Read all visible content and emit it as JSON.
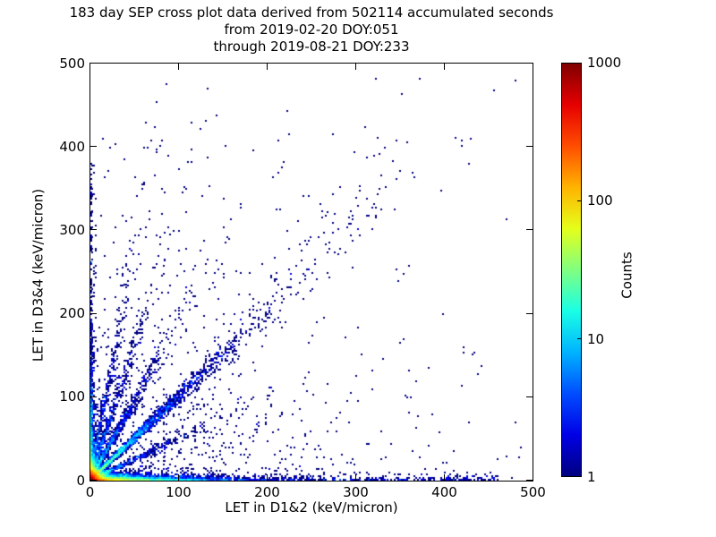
{
  "figure": {
    "background": "#ffffff"
  },
  "chart_data": {
    "type": "scatter",
    "subtype": "2d-histogram-cross-plot",
    "title_lines": [
      "183 day SEP cross plot data derived from 502114 accumulated seconds",
      "from 2019-02-20 DOY:051",
      "through 2019-08-21 DOY:233"
    ],
    "xlabel": "LET in D1&2 (keV/micron)",
    "ylabel": "LET in D3&4 (keV/micron)",
    "xlim": [
      0,
      500
    ],
    "ylim": [
      0,
      500
    ],
    "xticks": [
      0,
      100,
      200,
      300,
      400,
      500
    ],
    "yticks": [
      0,
      100,
      200,
      300,
      400,
      500
    ],
    "grid": false,
    "single_count_color": "#000080",
    "colorbar": {
      "label": "Counts",
      "scale": "log",
      "vmin": 1,
      "vmax": 1000,
      "ticks": [
        1,
        10,
        100,
        1000
      ],
      "colormap": "jet",
      "position": "right"
    },
    "bin_size": 2,
    "density_model": {
      "seed": 20190220,
      "components": [
        {
          "name": "origin-core",
          "kind": "exp2d",
          "n": 9000,
          "xscale": 4.5,
          "yscale": 4.5
        },
        {
          "name": "bottom-band",
          "kind": "exp2d",
          "n": 4800,
          "xscale": 38,
          "yscale": 2.2
        },
        {
          "name": "bottom-band-tail",
          "kind": "uniform-exp",
          "n": 500,
          "xmax": 462,
          "yscale": 2.2
        },
        {
          "name": "left-band",
          "kind": "exp2d",
          "n": 2000,
          "xscale": 2.0,
          "yscale": 40
        },
        {
          "name": "left-band-tail",
          "kind": "exp-uniform",
          "n": 150,
          "xscale": 2.0,
          "ymax": 380
        },
        {
          "name": "ray-diagonal",
          "kind": "ray",
          "n": 2400,
          "slope": 1.0,
          "rscale": 55,
          "jitter": 0.055
        },
        {
          "name": "ray-diagonal-tail",
          "kind": "ray-uniform",
          "n": 80,
          "slope": 1.12,
          "rmin": 120,
          "rmax": 330,
          "jitter": 0.1
        },
        {
          "name": "ray-2",
          "kind": "ray",
          "n": 900,
          "slope": 1.9,
          "rscale": 30,
          "jitter": 0.07
        },
        {
          "name": "ray-3",
          "kind": "ray",
          "n": 600,
          "slope": 3.2,
          "rscale": 22,
          "jitter": 0.08
        },
        {
          "name": "ray-4",
          "kind": "ray",
          "n": 450,
          "slope": 5.5,
          "rscale": 16,
          "jitter": 0.09
        },
        {
          "name": "ray-sub-diagonal",
          "kind": "ray",
          "n": 550,
          "slope": 0.5,
          "rscale": 42,
          "jitter": 0.07
        },
        {
          "name": "diffuse",
          "kind": "exp2d",
          "n": 800,
          "xscale": 110,
          "yscale": 85
        },
        {
          "name": "diffuse-wide",
          "kind": "uniform2d",
          "n": 90,
          "xmax": 450,
          "ymax": 430
        }
      ]
    },
    "outliers": [
      [
        352,
        462
      ],
      [
        332,
        399
      ],
      [
        125,
        421
      ],
      [
        207,
        363
      ],
      [
        101,
        298
      ],
      [
        50,
        362
      ],
      [
        21,
        371
      ],
      [
        150,
        302
      ],
      [
        170,
        330
      ],
      [
        246,
        340
      ],
      [
        280,
        300
      ],
      [
        322,
        327
      ],
      [
        296,
        255
      ],
      [
        360,
        257
      ],
      [
        234,
        310
      ],
      [
        260,
        330
      ],
      [
        305,
        352
      ],
      [
        318,
        300
      ]
    ]
  }
}
